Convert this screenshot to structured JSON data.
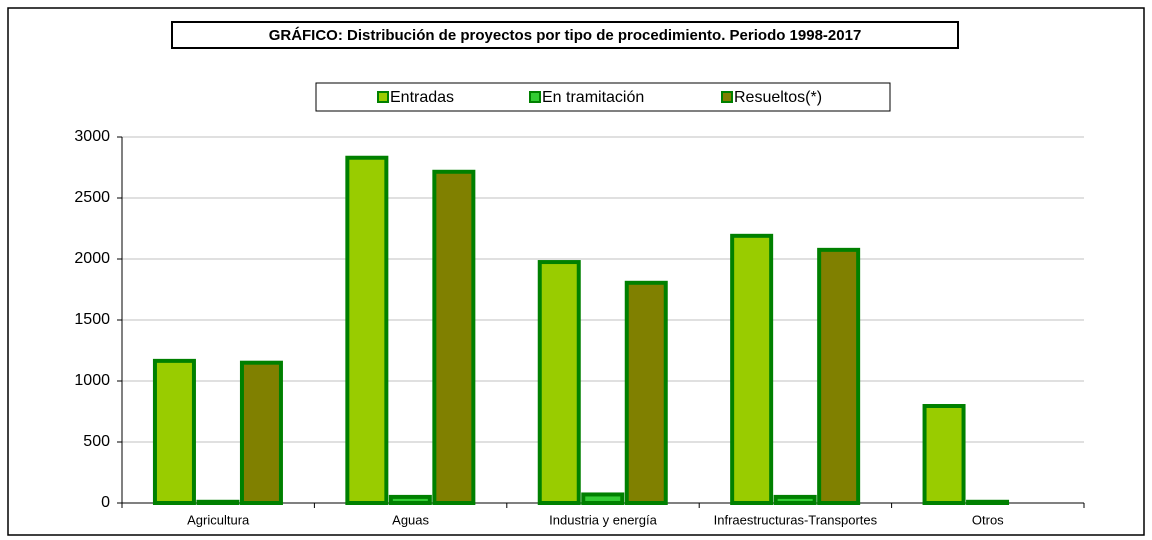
{
  "chart_data": {
    "type": "bar",
    "title": "GRÁFICO: Distribución de proyectos por tipo de procedimiento. Periodo 1998-2017",
    "categories": [
      "Agricultura",
      "Aguas",
      "Industria y energía",
      "Infraestructuras-Transportes",
      "Otros"
    ],
    "series": [
      {
        "name": "Entradas",
        "color": "#99cc00",
        "values": [
          1165,
          2830,
          1975,
          2190,
          795
        ]
      },
      {
        "name": "En tramitación",
        "color": "#33cc33",
        "values": [
          10,
          50,
          70,
          50,
          10
        ]
      },
      {
        "name": "Resueltos(*)",
        "color": "#808000",
        "values": [
          1150,
          2715,
          1805,
          2075,
          0
        ]
      }
    ],
    "border_color": "#008000",
    "ylim": [
      0,
      3000
    ],
    "yticks": [
      0,
      500,
      1000,
      1500,
      2000,
      2500,
      3000
    ],
    "grid": true,
    "legend": "top"
  }
}
